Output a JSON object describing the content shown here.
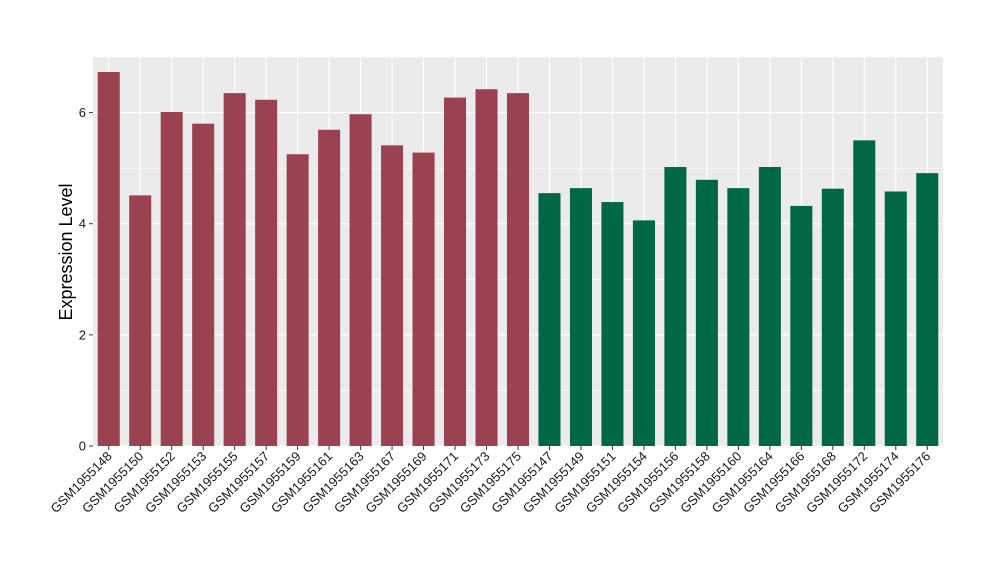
{
  "chart_data": {
    "type": "bar",
    "title": "",
    "xlabel": "",
    "ylabel": "Expression Level",
    "ylim": [
      0,
      7
    ],
    "yticks": [
      0,
      2,
      4,
      6
    ],
    "grid": true,
    "legend": "none",
    "panel_background": "#EBEBEB",
    "grid_color": "#FFFFFF",
    "group_colors": [
      "#9B4250",
      "#006846"
    ],
    "categories": [
      "GSM1955148",
      "GSM1955150",
      "GSM1955152",
      "GSM1955153",
      "GSM1955155",
      "GSM1955157",
      "GSM1955159",
      "GSM1955161",
      "GSM1955163",
      "GSM1955167",
      "GSM1955169",
      "GSM1955171",
      "GSM1955173",
      "GSM1955175",
      "GSM1955147",
      "GSM1955149",
      "GSM1955151",
      "GSM1955154",
      "GSM1955156",
      "GSM1955158",
      "GSM1955160",
      "GSM1955164",
      "GSM1955166",
      "GSM1955168",
      "GSM1955172",
      "GSM1955174",
      "GSM1955176"
    ],
    "values": [
      6.73,
      4.51,
      6.01,
      5.8,
      6.35,
      6.23,
      5.25,
      5.69,
      5.97,
      5.41,
      5.28,
      6.27,
      6.42,
      6.35,
      4.55,
      4.64,
      4.39,
      4.06,
      5.02,
      4.79,
      4.64,
      5.02,
      4.32,
      4.63,
      5.5,
      4.58,
      4.91
    ],
    "groups": [
      0,
      0,
      0,
      0,
      0,
      0,
      0,
      0,
      0,
      0,
      0,
      0,
      0,
      0,
      1,
      1,
      1,
      1,
      1,
      1,
      1,
      1,
      1,
      1,
      1,
      1,
      1
    ]
  }
}
